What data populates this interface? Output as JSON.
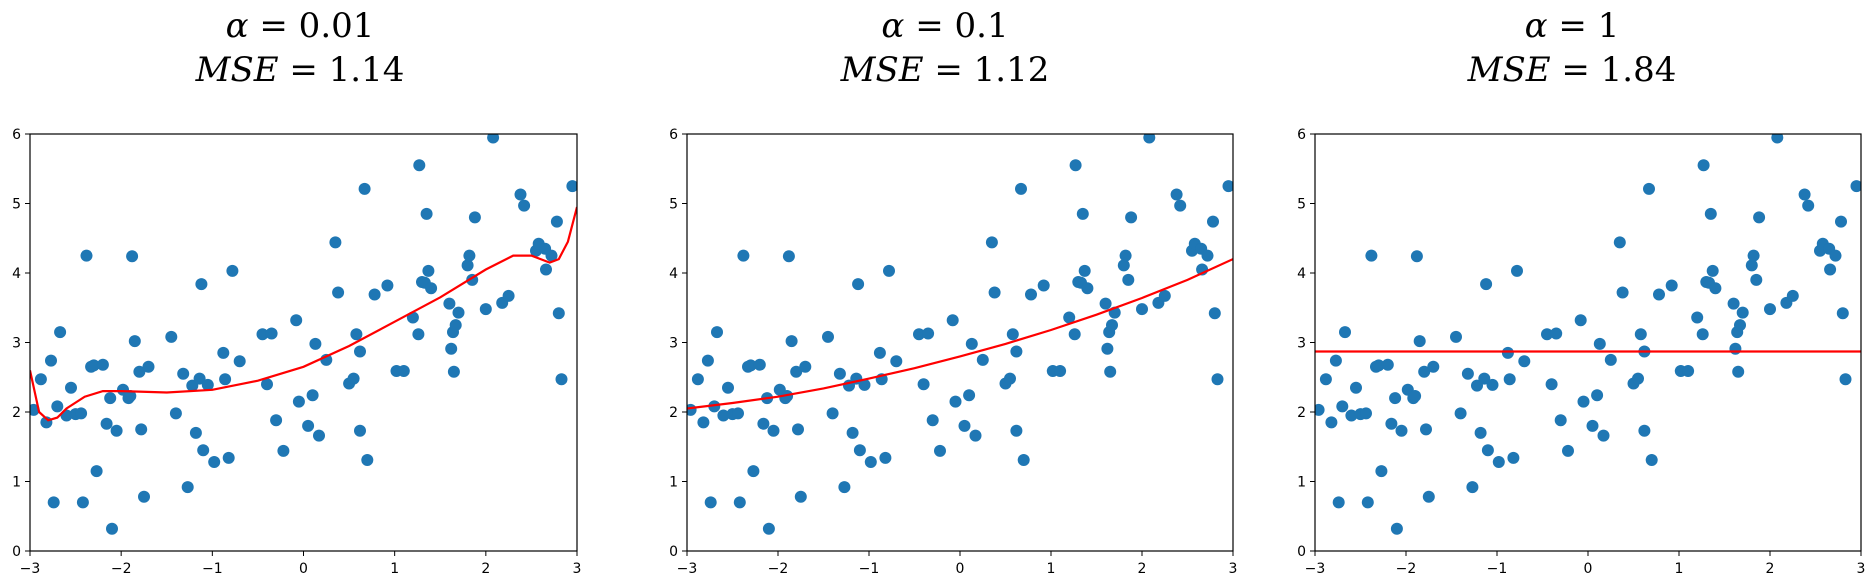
{
  "chart_data": [
    {
      "type": "scatter",
      "title_line1_var": "α",
      "title_line1_value": "= 0.01",
      "title_line2_var": "MSE",
      "title_line2_value": "= 1.14",
      "xlim": [
        -3,
        3
      ],
      "ylim": [
        0,
        6
      ],
      "xticks": [
        "−3",
        "−2",
        "−1",
        "0",
        "1",
        "2",
        "3"
      ],
      "yticks": [
        "0",
        "1",
        "2",
        "3",
        "4",
        "5",
        "6"
      ],
      "fit_curve": {
        "x": [
          -3.0,
          -2.9,
          -2.8,
          -2.7,
          -2.6,
          -2.4,
          -2.2,
          -2.0,
          -1.5,
          -1.0,
          -0.5,
          0.0,
          0.5,
          1.0,
          1.5,
          2.0,
          2.3,
          2.5,
          2.7,
          2.8,
          2.9,
          3.0
        ],
        "y": [
          2.6,
          2.0,
          1.88,
          1.92,
          2.05,
          2.22,
          2.3,
          2.3,
          2.28,
          2.32,
          2.45,
          2.65,
          2.95,
          3.3,
          3.65,
          4.05,
          4.25,
          4.25,
          4.15,
          4.2,
          4.45,
          4.95
        ]
      }
    },
    {
      "type": "scatter",
      "title_line1_var": "α",
      "title_line1_value": "= 0.1",
      "title_line2_var": "MSE",
      "title_line2_value": "= 1.12",
      "xlim": [
        -3,
        3
      ],
      "ylim": [
        0,
        6
      ],
      "xticks": [
        "−3",
        "−2",
        "−1",
        "0",
        "1",
        "2",
        "3"
      ],
      "yticks": [
        "0",
        "1",
        "2",
        "3",
        "4",
        "5",
        "6"
      ],
      "fit_curve": {
        "x": [
          -3.0,
          -2.5,
          -2.0,
          -1.5,
          -1.0,
          -0.5,
          0.0,
          0.5,
          1.0,
          1.5,
          2.0,
          2.5,
          3.0
        ],
        "y": [
          2.05,
          2.13,
          2.22,
          2.34,
          2.48,
          2.63,
          2.8,
          2.98,
          3.18,
          3.4,
          3.64,
          3.9,
          4.2
        ]
      }
    },
    {
      "type": "scatter",
      "title_line1_var": "α",
      "title_line1_value": "= 1",
      "title_line2_var": "MSE",
      "title_line2_value": "= 1.84",
      "xlim": [
        -3,
        3
      ],
      "ylim": [
        0,
        6
      ],
      "xticks": [
        "−3",
        "−2",
        "−1",
        "0",
        "1",
        "2",
        "3"
      ],
      "yticks": [
        "0",
        "1",
        "2",
        "3",
        "4",
        "5",
        "6"
      ],
      "fit_curve": {
        "x": [
          -3.0,
          3.0
        ],
        "y": [
          2.87,
          2.87
        ]
      }
    }
  ],
  "points": {
    "x": [
      -2.96,
      -2.88,
      -2.82,
      -2.77,
      -2.74,
      -2.7,
      -2.67,
      -2.6,
      -2.55,
      -2.5,
      -2.44,
      -2.42,
      -2.38,
      -2.33,
      -2.3,
      -2.27,
      -2.2,
      -2.16,
      -2.12,
      -2.1,
      -2.05,
      -1.98,
      -1.92,
      -1.9,
      -1.88,
      -1.85,
      -1.8,
      -1.78,
      -1.75,
      -1.7,
      -1.45,
      -1.4,
      -1.32,
      -1.27,
      -1.22,
      -1.18,
      -1.14,
      -1.12,
      -1.1,
      -1.05,
      -0.98,
      -0.88,
      -0.86,
      -0.82,
      -0.78,
      -0.7,
      -0.45,
      -0.4,
      -0.35,
      -0.3,
      -0.22,
      -0.08,
      -0.05,
      0.05,
      0.1,
      0.13,
      0.17,
      0.25,
      0.35,
      0.38,
      0.5,
      0.55,
      0.58,
      0.62,
      0.62,
      0.67,
      0.7,
      0.78,
      0.92,
      1.02,
      1.1,
      1.2,
      1.26,
      1.27,
      1.3,
      1.33,
      1.35,
      1.37,
      1.4,
      1.6,
      1.62,
      1.64,
      1.65,
      1.67,
      1.7,
      1.8,
      1.82,
      1.85,
      1.88,
      2.0,
      2.08,
      2.18,
      2.25,
      2.38,
      2.42,
      2.55,
      2.58,
      2.65,
      2.66,
      2.72,
      2.78,
      2.8,
      2.83,
      2.95
    ],
    "y": [
      2.03,
      2.47,
      1.85,
      2.74,
      0.7,
      2.08,
      3.15,
      1.95,
      2.35,
      1.97,
      1.98,
      0.7,
      4.25,
      2.65,
      2.67,
      1.15,
      2.68,
      1.83,
      2.2,
      0.32,
      1.73,
      2.32,
      2.2,
      2.23,
      4.24,
      3.02,
      2.58,
      1.75,
      0.78,
      2.65,
      3.08,
      1.98,
      2.55,
      0.92,
      2.38,
      1.7,
      2.48,
      3.84,
      1.45,
      2.39,
      1.28,
      2.85,
      2.47,
      1.34,
      4.03,
      2.73,
      3.12,
      2.4,
      3.13,
      1.88,
      1.44,
      3.32,
      2.15,
      1.8,
      2.24,
      2.98,
      1.66,
      2.75,
      4.44,
      3.72,
      2.41,
      2.48,
      3.12,
      1.73,
      2.87,
      5.21,
      1.31,
      3.69,
      3.82,
      2.59,
      2.59,
      3.36,
      3.12,
      5.55,
      3.87,
      3.86,
      4.85,
      4.03,
      3.78,
      3.56,
      2.91,
      3.15,
      2.58,
      3.25,
      3.43,
      4.11,
      4.25,
      3.9,
      4.8,
      3.48,
      5.95,
      3.57,
      3.67,
      5.13,
      4.97,
      4.32,
      4.42,
      4.35,
      4.05,
      4.25,
      4.74,
      3.42,
      2.47,
      5.25
    ]
  },
  "colors": {
    "points": "#1f77b4",
    "fit_line": "#ff0000",
    "axes": "#000000"
  }
}
